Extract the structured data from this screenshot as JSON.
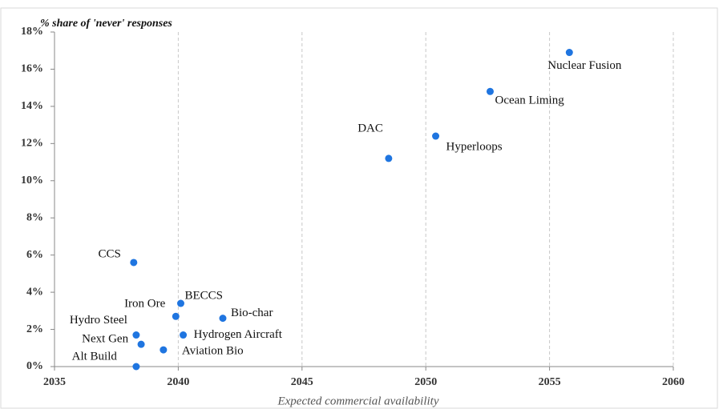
{
  "chart_data": {
    "type": "scatter",
    "y_axis_label": "% share of 'never' responses",
    "x_axis_label": "Expected commercial availability",
    "color": "#1f75e0",
    "grid": "x",
    "labels": [
      "Nuclear Fusion",
      "Ocean Liming",
      "Hyperloops",
      "DAC",
      "CCS",
      "BECCS",
      "Iron Ore",
      "Bio-char",
      "Hydro Steel",
      "Hydrogen Aircraft",
      "Next Gen",
      "Aviation Bio",
      "Alt Build"
    ],
    "x": [
      2055.8,
      2052.6,
      2050.4,
      2048.5,
      2038.2,
      2040.1,
      2039.9,
      2041.8,
      2038.3,
      2040.2,
      2038.5,
      2039.4,
      2038.3
    ],
    "values": [
      16.9,
      14.8,
      12.4,
      11.2,
      5.6,
      3.4,
      2.7,
      2.6,
      1.7,
      1.7,
      1.2,
      0.9,
      0.0
    ],
    "xlim": [
      2035,
      2060
    ],
    "xticks": [
      2035,
      2040,
      2045,
      2050,
      2055,
      2060
    ],
    "ylim": [
      0,
      18
    ],
    "yticks": [
      {
        "value": 0,
        "label": "0%"
      },
      {
        "value": 2,
        "label": "2%"
      },
      {
        "value": 4,
        "label": "4%"
      },
      {
        "value": 6,
        "label": "6%"
      },
      {
        "value": 8,
        "label": "8%"
      },
      {
        "value": 10,
        "label": "10%"
      },
      {
        "value": 12,
        "label": "12%"
      },
      {
        "value": 14,
        "label": "14%"
      },
      {
        "value": 16,
        "label": "16%"
      },
      {
        "value": 18,
        "label": "18%"
      }
    ]
  }
}
